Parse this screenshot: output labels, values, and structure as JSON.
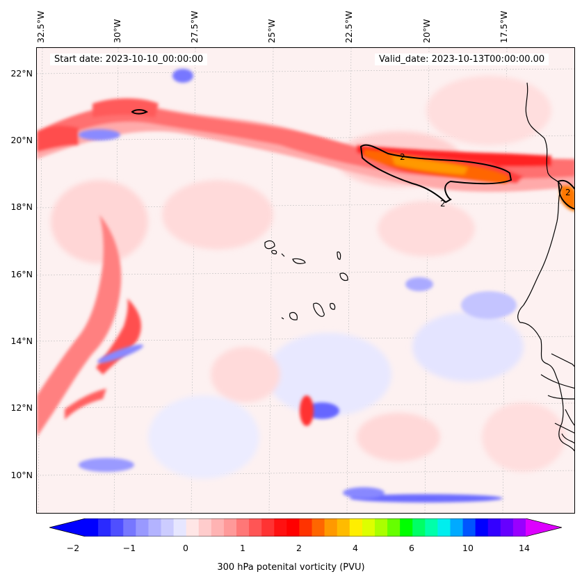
{
  "map": {
    "start_date": "Start date: 2023-10-10_00:00:00",
    "valid_date": "Valid_date: 2023-10-13T00:00:00.00",
    "lon_labels": [
      "32.5°W",
      "30°W",
      "27.5°W",
      "25°W",
      "22.5°W",
      "20°W",
      "17.5°W"
    ],
    "lat_labels": [
      "22°N",
      "20°N",
      "18°N",
      "16°N",
      "14°N",
      "12°N",
      "10°N"
    ],
    "contour_labels": [
      "2",
      "2",
      "2"
    ],
    "background_color": "#fdf1f1",
    "coastline_color": "#000000"
  },
  "colorbar": {
    "caption": "300 hPa potenital vorticity (PVU)",
    "tick_labels": [
      "−2",
      "−1",
      "0",
      "1",
      "2",
      "4",
      "6",
      "10",
      "14"
    ],
    "colors": [
      "#0000ff",
      "#2a2aff",
      "#4f4fff",
      "#7777ff",
      "#9999ff",
      "#b3b3ff",
      "#ccccff",
      "#e6e6ff",
      "#ffe6e6",
      "#ffcccc",
      "#ffb3b3",
      "#ff9999",
      "#ff7777",
      "#ff5555",
      "#ff3333",
      "#ff1111",
      "#ff0000",
      "#ff3300",
      "#ff6600",
      "#ff9900",
      "#ffbb00",
      "#ffee00",
      "#ddff00",
      "#aaff00",
      "#66ff00",
      "#00ff00",
      "#00ff66",
      "#00ffaa",
      "#00eeee",
      "#00aaff",
      "#0055ff",
      "#0000ff",
      "#3300ff",
      "#6600ff",
      "#9900ff"
    ],
    "under_color": "#0000ff",
    "over_color": "#dd00ff"
  }
}
